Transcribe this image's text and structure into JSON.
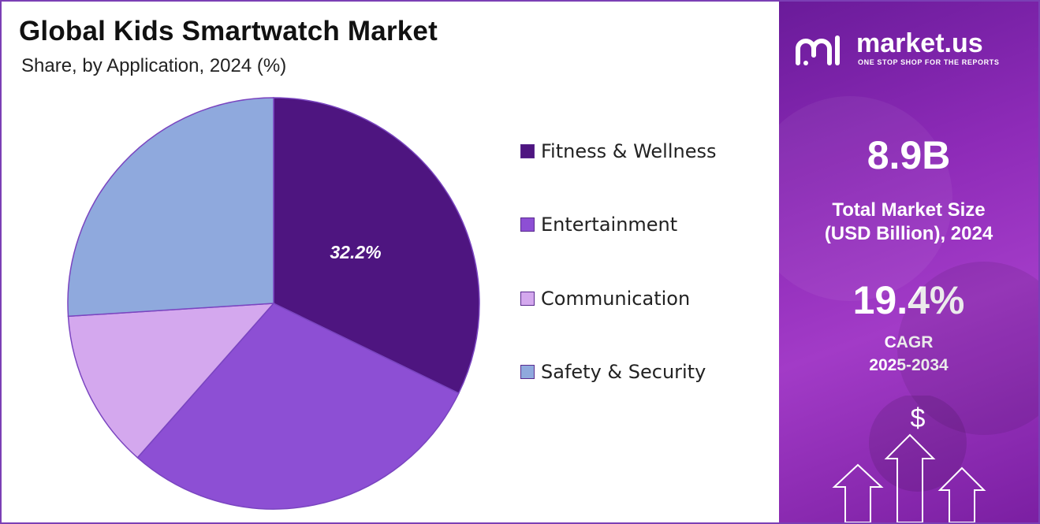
{
  "header": {
    "title": "Global Kids Smartwatch Market",
    "subtitle": "Share, by Application, 2024 (%)"
  },
  "chart_data": {
    "type": "pie",
    "title": "Global Kids Smartwatch Market",
    "subtitle": "Share, by Application, 2024 (%)",
    "categories": [
      "Fitness & Wellness",
      "Entertainment",
      "Communication",
      "Safety & Security"
    ],
    "values": [
      32.2,
      29.3,
      12.5,
      26.0
    ],
    "colors": [
      "#4e1580",
      "#8d4fd4",
      "#d4a8ee",
      "#8fa9dd"
    ],
    "data_labels": [
      "32.2%",
      "",
      "",
      ""
    ],
    "start_angle": "12 o'clock",
    "direction": "clockwise",
    "legend_position": "right"
  },
  "legend": {
    "items": [
      {
        "label": "Fitness & Wellness",
        "color": "#4e1580"
      },
      {
        "label": "Entertainment",
        "color": "#8d4fd4"
      },
      {
        "label": "Communication",
        "color": "#d4a8ee"
      },
      {
        "label": "Safety & Security",
        "color": "#8fa9dd"
      }
    ]
  },
  "brand": {
    "name": "market.us",
    "tagline": "ONE STOP SHOP FOR THE REPORTS",
    "icon": "market-us-logo"
  },
  "stats": {
    "market_size_value": "8.9B",
    "market_size_label_line1": "Total Market Size",
    "market_size_label_line2": "(USD Billion), 2024",
    "cagr_value": "19.4%",
    "cagr_label_line1": "CAGR",
    "cagr_label_line2": "2025-2034"
  },
  "decor": {
    "currency_symbol": "$",
    "icons": [
      "dollar-icon",
      "up-arrow-icon"
    ]
  },
  "colors": {
    "panel_accent": "#8e2bb8",
    "border": "#7b3fb5"
  }
}
